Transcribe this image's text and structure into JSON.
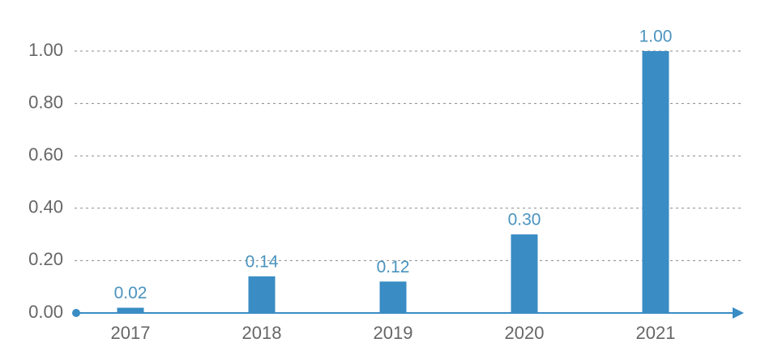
{
  "chart_data": {
    "type": "bar",
    "categories": [
      "2017",
      "2018",
      "2019",
      "2020",
      "2021"
    ],
    "values": [
      0.02,
      0.14,
      0.12,
      0.3,
      1.0
    ],
    "value_labels": [
      "0.02",
      "0.14",
      "0.12",
      "0.30",
      "1.00"
    ],
    "color": "#3a8cc4",
    "ylim": [
      0,
      1.0
    ],
    "yticks": [
      {
        "value": 0,
        "label": "0.00"
      },
      {
        "value": 0.2,
        "label": "0.20"
      },
      {
        "value": 0.4,
        "label": "0.40"
      },
      {
        "value": 0.6,
        "label": "0.60"
      },
      {
        "value": 0.8,
        "label": "0.80"
      },
      {
        "value": 1.0,
        "label": "1.00"
      }
    ],
    "grid": true
  }
}
